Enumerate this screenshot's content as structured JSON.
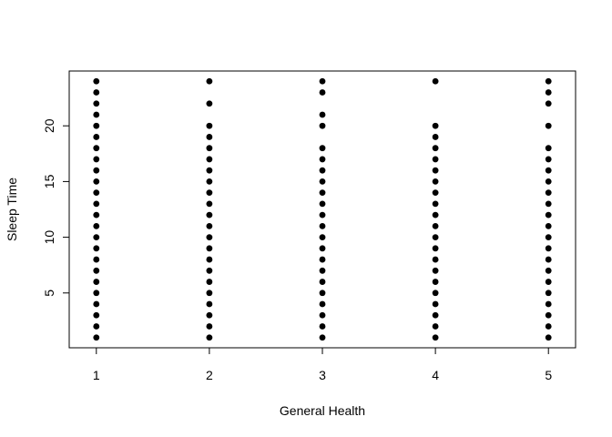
{
  "chart_data": {
    "type": "scatter",
    "title": "",
    "xlabel": "General Health",
    "ylabel": "Sleep Time",
    "xlim": [
      0.76,
      5.24
    ],
    "ylim": [
      0.08,
      24.92
    ],
    "x_ticks": [
      1,
      2,
      3,
      4,
      5
    ],
    "y_ticks": [
      5,
      10,
      15,
      20
    ],
    "grid": false,
    "legend": "none",
    "point_color": "#000000",
    "series": [
      {
        "x": 1,
        "values": [
          1,
          2,
          3,
          4,
          5,
          6,
          7,
          8,
          9,
          10,
          11,
          12,
          13,
          14,
          15,
          16,
          17,
          18,
          19,
          20,
          21,
          22,
          23,
          24
        ]
      },
      {
        "x": 2,
        "values": [
          1,
          2,
          3,
          4,
          5,
          6,
          7,
          8,
          9,
          10,
          11,
          12,
          13,
          14,
          15,
          16,
          17,
          18,
          19,
          20,
          22,
          24
        ]
      },
      {
        "x": 3,
        "values": [
          1,
          2,
          3,
          4,
          5,
          6,
          7,
          8,
          9,
          10,
          11,
          12,
          13,
          14,
          15,
          16,
          17,
          18,
          20,
          21,
          23,
          24
        ]
      },
      {
        "x": 4,
        "values": [
          1,
          2,
          3,
          4,
          5,
          6,
          7,
          8,
          9,
          10,
          11,
          12,
          13,
          14,
          15,
          16,
          17,
          18,
          19,
          20,
          24
        ]
      },
      {
        "x": 5,
        "values": [
          1,
          2,
          3,
          4,
          5,
          6,
          7,
          8,
          9,
          10,
          11,
          12,
          13,
          14,
          15,
          16,
          17,
          18,
          20,
          22,
          23,
          24
        ]
      }
    ]
  }
}
